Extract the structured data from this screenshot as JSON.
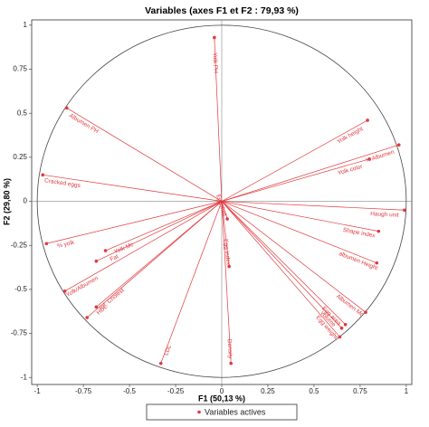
{
  "chart_data": {
    "type": "scatter",
    "title": "Variables (axes F1 et F2 : 79,93 %)",
    "x_label": "F1 (50,13 %)",
    "y_label": "F2 (29,80 %)",
    "xlim": [
      -1.03,
      1.03
    ],
    "ylim": [
      -1.04,
      1.03
    ],
    "xticks": [
      -1,
      -0.75,
      -0.5,
      -0.25,
      0,
      0.25,
      0.5,
      0.75,
      1
    ],
    "yticks": [
      -1,
      -0.75,
      -0.5,
      -0.25,
      0,
      0.25,
      0.5,
      0.75,
      1
    ],
    "legend": "bottom",
    "series": [
      {
        "name": "Variables actives",
        "color": "#e0393e",
        "categories": [
          "Yolk PH",
          "Albumen PH",
          "Yolk height",
          "% Albumen",
          "Yolk color",
          "Cracked eggs",
          "Haugh unit",
          "Shape index",
          "% yolk",
          "Yolk Mc",
          "Fat",
          "albumen Height",
          "Eggshell",
          "Egg index",
          "Yolk/Albumen",
          "Tot. Cholest",
          "HDL",
          "Albumen Mc",
          "Egg area",
          "volume",
          "Egg weight",
          "LDL",
          "Density"
        ],
        "x": [
          -0.04,
          -0.84,
          0.79,
          0.96,
          0.8,
          -0.97,
          0.99,
          0.85,
          -0.95,
          -0.63,
          -0.68,
          0.84,
          0.03,
          0.04,
          -0.85,
          -0.68,
          -0.73,
          0.78,
          0.67,
          0.65,
          0.64,
          -0.33,
          0.05
        ],
        "values": [
          0.93,
          0.53,
          0.46,
          0.32,
          0.24,
          0.15,
          -0.05,
          -0.17,
          -0.24,
          -0.28,
          -0.34,
          -0.35,
          -0.1,
          -0.37,
          -0.51,
          -0.6,
          -0.66,
          -0.63,
          -0.7,
          -0.72,
          -0.77,
          -0.92,
          -0.92
        ]
      }
    ]
  }
}
